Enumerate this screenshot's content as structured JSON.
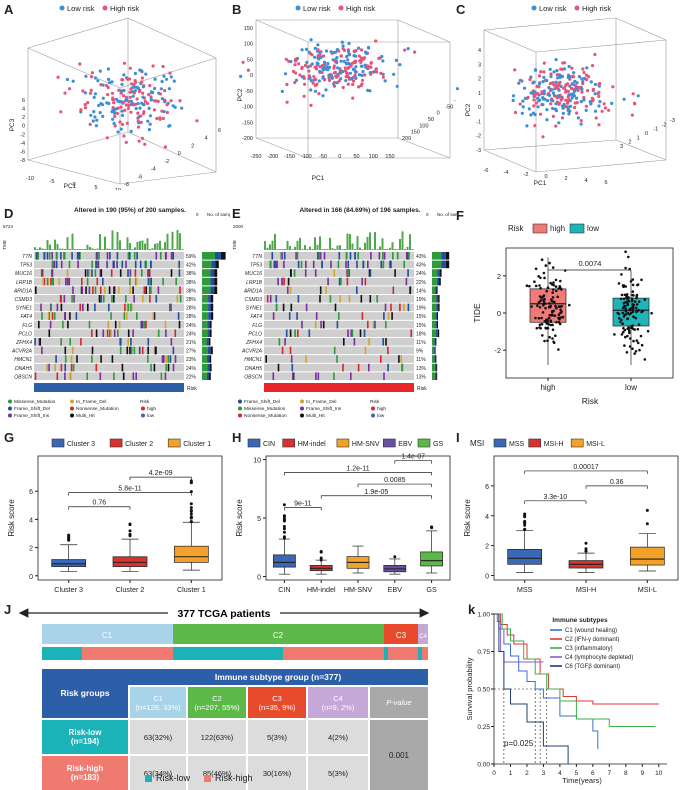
{
  "panels": {
    "A": "A",
    "B": "B",
    "C": "C",
    "D": "D",
    "E": "E",
    "F": "F",
    "G": "G",
    "H": "H",
    "I": "I",
    "J": "J",
    "K": "k"
  },
  "pca": {
    "legend": [
      "Low risk",
      "High risk"
    ],
    "colors": {
      "low": "#3b8fd4",
      "high": "#e8537a"
    },
    "A": {
      "xaxis": "PC1",
      "yaxis": "PC3",
      "xticks": [
        "-10",
        "-5",
        "0",
        "5",
        "10"
      ],
      "yticks": [
        "6",
        "4",
        "2",
        "0",
        "-2",
        "-4",
        "-6",
        "-8"
      ],
      "zticks": [
        "-8",
        "-6",
        "-4",
        "-2",
        "0",
        "2",
        "4",
        "6"
      ]
    },
    "B": {
      "xaxis": "PC1",
      "yaxis": "PC2",
      "xticks": [
        "-250",
        "-200",
        "-150",
        "-100",
        "-50",
        "0",
        "50",
        "100",
        "150"
      ],
      "yticks": [
        "150",
        "100",
        "50",
        "0",
        "-50",
        "-100",
        "-150",
        "-200"
      ],
      "zticks": [
        "200",
        "150",
        "100",
        "50",
        "0",
        "-50",
        "-100"
      ]
    },
    "C": {
      "xaxis": "PC1",
      "yaxis": "PC2",
      "xticks": [
        "-6",
        "-4",
        "-2",
        "0",
        "2",
        "4",
        "6"
      ],
      "yticks": [
        "4",
        "3",
        "2",
        "1",
        "0",
        "-1",
        "-2",
        "-3"
      ],
      "zticks": [
        "3",
        "2",
        "1",
        "0",
        "-1",
        "-2",
        "-3"
      ]
    }
  },
  "oncoplot": {
    "D": {
      "title": "Altered in 190 (95%) of 200 samples.",
      "tmb_label": "TMB",
      "tmb_max": "5724",
      "no_samples": "No. of samples",
      "ns_max": "119",
      "ns_min": "0",
      "genes": [
        "TTN",
        "TP53",
        "MUC16",
        "LRP1B",
        "ARID1A",
        "CSMD3",
        "SYNE1",
        "FAT4",
        "FLG",
        "PCLO",
        "ZFHX4",
        "ACVR2A",
        "HMCN1",
        "DNAH5",
        "OBSCN"
      ],
      "pcts": [
        "59%",
        "42%",
        "38%",
        "38%",
        "38%",
        "28%",
        "28%",
        "28%",
        "24%",
        "24%",
        "21%",
        "27%",
        "23%",
        "24%",
        "22%"
      ],
      "risk_label": "Risk",
      "legend": [
        "Missense_Mutation",
        "Frame_Shift_Del",
        "Frame_Shift_Ins",
        "In_Frame_Del",
        "Nonsense_Mutation",
        "Multi_Hit"
      ],
      "risk_legend_title": "Risk",
      "risk_legend": [
        "high",
        "low"
      ]
    },
    "E": {
      "title": "Altered in 166 (84.69%) of 196 samples.",
      "tmb_label": "TMB",
      "tmb_max": "2000",
      "no_samples": "No. of samples",
      "ns_max": "85",
      "ns_min": "0",
      "genes": [
        "TTN",
        "TP53",
        "MUC16",
        "LRP1B",
        "ARID1A",
        "CSMD3",
        "SYNE1",
        "FAT4",
        "FLG",
        "PCLO",
        "ZFHX4",
        "ACVR2A",
        "HMCN1",
        "DNAH5",
        "OBSCN"
      ],
      "pcts": [
        "43%",
        "43%",
        "24%",
        "22%",
        "14%",
        "19%",
        "19%",
        "15%",
        "15%",
        "18%",
        "11%",
        "9%",
        "11%",
        "13%",
        "13%"
      ],
      "risk_label": "Risk",
      "legend": [
        "Frame_Shift_Del",
        "Missense_Mutation",
        "Nonsense_Mutation",
        "In_Frame_Del",
        "Frame_Shift_Ins",
        "Multi_Hit"
      ],
      "risk_legend_title": "Risk",
      "risk_legend": [
        "high",
        "low"
      ]
    }
  },
  "tide": {
    "legend_title": "Risk",
    "legend": [
      "high",
      "low"
    ],
    "ylabel": "TIDE",
    "xlabel": "Risk",
    "categories": [
      "high",
      "low"
    ],
    "pvalue": "0.0074",
    "yticks": [
      "2",
      "0",
      "-2"
    ],
    "colors": {
      "high": "#f07a78",
      "low": "#1eb5b8"
    }
  },
  "boxG": {
    "legend": [
      "Cluster 3",
      "Cluster 2",
      "Cluster 1"
    ],
    "colors": [
      "#3a68b4",
      "#d9312e",
      "#f4a12a"
    ],
    "ylabel": "Risk score",
    "categories": [
      "Cluster 3",
      "Cluster 2",
      "Cluster 1"
    ],
    "pvals": [
      "0.76",
      "5.8e-11",
      "4.2e-09"
    ],
    "yticks": [
      "6",
      "4",
      "2",
      "0"
    ]
  },
  "boxH": {
    "legend": [
      "CIN",
      "HM-indel",
      "HM-SNV",
      "EBV",
      "GS"
    ],
    "colors": [
      "#3a68b4",
      "#d9312e",
      "#f4a12a",
      "#6a4ea0",
      "#5cb848"
    ],
    "ylabel": "Risk score",
    "categories": [
      "CIN",
      "HM-indel",
      "HM-SNV",
      "EBV",
      "GS"
    ],
    "pvals": [
      "9e-11",
      "1.9e-05",
      "0.0085",
      "1.2e-11",
      "1.4e-07"
    ],
    "yticks": [
      "10",
      "5",
      "0"
    ]
  },
  "boxI": {
    "legend_title": "MSI",
    "legend": [
      "MSS",
      "MSI-H",
      "MSI-L"
    ],
    "colors": [
      "#3a68b4",
      "#d9312e",
      "#f4a12a"
    ],
    "ylabel": "Risk score",
    "categories": [
      "MSS",
      "MSI-H",
      "MSI-L"
    ],
    "pvals": [
      "3.3e-10",
      "0.36",
      "0.00017"
    ],
    "yticks": [
      "6",
      "4",
      "2",
      "0"
    ]
  },
  "tableJ": {
    "banner": "377 TCGA patients",
    "subtypes": [
      "C1",
      "C2",
      "C3",
      "C4"
    ],
    "group_header": "Immune subtype group (n=377)",
    "row_header": "Risk groups",
    "cols": [
      {
        "name": "C1",
        "n": "(n=126, 33%)"
      },
      {
        "name": "C2",
        "n": "(n=207, 55%)"
      },
      {
        "name": "C3",
        "n": "(n=35, 9%)"
      },
      {
        "name": "C4",
        "n": "(n=9, 2%)"
      }
    ],
    "pvalue_header": "P-value",
    "rows": [
      {
        "name": "Risk-low",
        "n": "(n=194)",
        "vals": [
          "63(32%)",
          "122(63%)",
          "5(3%)",
          "4(2%)"
        ]
      },
      {
        "name": "Risk-high",
        "n": "(n=183)",
        "vals": [
          "63(34%)",
          "85(46%)",
          "30(16%)",
          "5(3%)"
        ]
      }
    ],
    "pvalue": "0.001",
    "legend": [
      "Risk-low",
      "Risk-high"
    ],
    "colors": {
      "C1": "#a9d3e8",
      "C2": "#5cb848",
      "C3": "#e84a2c",
      "C4": "#c6a8d8",
      "low": "#1ab3b7",
      "high": "#f07a70",
      "hdr": "#2c5fa8",
      "grey": "#dcdcdc",
      "darkgrey": "#a9a9a9"
    }
  },
  "km": {
    "ylabel": "Survival probability",
    "xlabel": "Time(years)",
    "pvalue": "p=0.025",
    "legend_title": "Immune subtypes",
    "legend": [
      "C1 (wound healing)",
      "C2 (IFN-γ dominant)",
      "C3 (inflammatory)",
      "C4 (lymphocyte depleted)",
      "C6 (TGFβ dominant)"
    ],
    "colors": [
      "#3a6fd0",
      "#e23434",
      "#3fae49",
      "#8e5cc4",
      "#233f73"
    ],
    "yticks": [
      "1.00",
      "0.75",
      "0.50",
      "0.25",
      "0.00"
    ],
    "xticks": [
      "0",
      "1",
      "2",
      "3",
      "4",
      "5",
      "6",
      "7",
      "8",
      "9",
      "10"
    ]
  }
}
